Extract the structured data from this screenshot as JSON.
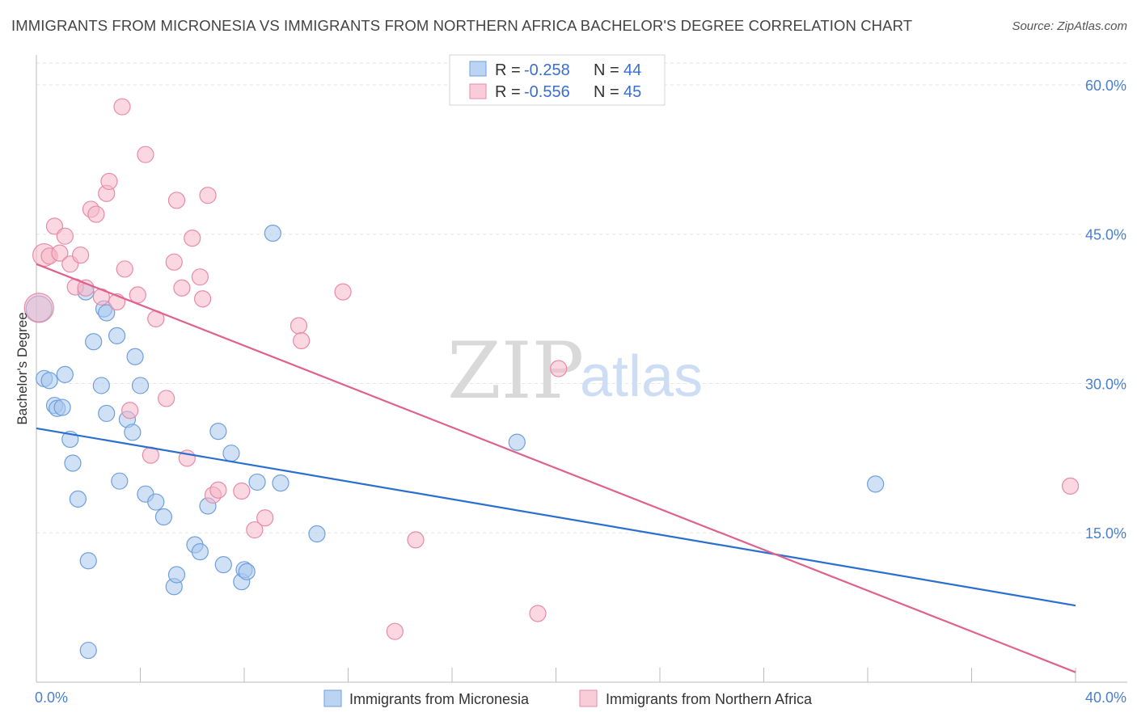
{
  "header": {
    "title": "IMMIGRANTS FROM MICRONESIA VS IMMIGRANTS FROM NORTHERN AFRICA BACHELOR'S DEGREE CORRELATION CHART",
    "source": "Source: ZipAtlas.com"
  },
  "watermark": {
    "zip": "ZIP",
    "atlas": "atlas"
  },
  "legend_top": {
    "r_label": "R =",
    "n_label": "N =",
    "rows": [
      {
        "r": "-0.258",
        "n": "44"
      },
      {
        "r": "-0.556",
        "n": "45"
      }
    ]
  },
  "chart_data": {
    "type": "scatter",
    "title": "IMMIGRANTS FROM MICRONESIA VS IMMIGRANTS FROM NORTHERN AFRICA BACHELOR'S DEGREE CORRELATION CHART",
    "xlabel": "",
    "ylabel": "Bachelor's Degree",
    "xlim": [
      0,
      40
    ],
    "ylim": [
      0,
      63
    ],
    "x_tick_labels": [
      "0.0%",
      "40.0%"
    ],
    "y_ticks": [
      15,
      30,
      45,
      60
    ],
    "y_tick_labels": [
      "15.0%",
      "30.0%",
      "45.0%",
      "60.0%"
    ],
    "grid": true,
    "legend_placement": "bottom-center",
    "series": [
      {
        "name": "Immigrants from Micronesia",
        "color": "#a9c8ef",
        "edge": "#6e9fdc",
        "line_color": "#2a6fd0",
        "R": -0.258,
        "N": 44,
        "trend": {
          "x": [
            0,
            40
          ],
          "y": [
            25.5,
            7.7
          ]
        },
        "points": [
          {
            "x": 0.1,
            "y": 37.5,
            "s": 16
          },
          {
            "x": 0.3,
            "y": 30.5,
            "s": 10
          },
          {
            "x": 0.5,
            "y": 30.3,
            "s": 10
          },
          {
            "x": 0.7,
            "y": 27.8,
            "s": 10
          },
          {
            "x": 0.8,
            "y": 27.5,
            "s": 10
          },
          {
            "x": 1.0,
            "y": 27.6,
            "s": 10
          },
          {
            "x": 1.1,
            "y": 30.9,
            "s": 10
          },
          {
            "x": 1.3,
            "y": 24.4,
            "s": 10
          },
          {
            "x": 1.4,
            "y": 22.0,
            "s": 10
          },
          {
            "x": 1.6,
            "y": 18.4,
            "s": 10
          },
          {
            "x": 1.9,
            "y": 39.2,
            "s": 10
          },
          {
            "x": 2.0,
            "y": 12.2,
            "s": 10
          },
          {
            "x": 2.0,
            "y": 3.2,
            "s": 10
          },
          {
            "x": 2.2,
            "y": 34.2,
            "s": 10
          },
          {
            "x": 2.5,
            "y": 29.8,
            "s": 10
          },
          {
            "x": 2.6,
            "y": 37.5,
            "s": 10
          },
          {
            "x": 2.7,
            "y": 37.1,
            "s": 10
          },
          {
            "x": 2.7,
            "y": 27.0,
            "s": 10
          },
          {
            "x": 3.1,
            "y": 34.8,
            "s": 10
          },
          {
            "x": 3.2,
            "y": 20.2,
            "s": 10
          },
          {
            "x": 3.5,
            "y": 26.4,
            "s": 10
          },
          {
            "x": 3.7,
            "y": 25.1,
            "s": 10
          },
          {
            "x": 3.8,
            "y": 32.7,
            "s": 10
          },
          {
            "x": 4.0,
            "y": 29.8,
            "s": 10
          },
          {
            "x": 4.2,
            "y": 18.9,
            "s": 10
          },
          {
            "x": 4.6,
            "y": 18.1,
            "s": 10
          },
          {
            "x": 4.9,
            "y": 16.6,
            "s": 10
          },
          {
            "x": 5.3,
            "y": 9.6,
            "s": 10
          },
          {
            "x": 5.4,
            "y": 10.8,
            "s": 10
          },
          {
            "x": 6.1,
            "y": 13.8,
            "s": 10
          },
          {
            "x": 6.3,
            "y": 13.1,
            "s": 10
          },
          {
            "x": 6.6,
            "y": 17.7,
            "s": 10
          },
          {
            "x": 7.0,
            "y": 25.2,
            "s": 10
          },
          {
            "x": 7.2,
            "y": 11.8,
            "s": 10
          },
          {
            "x": 7.5,
            "y": 23.0,
            "s": 10
          },
          {
            "x": 7.9,
            "y": 10.1,
            "s": 10
          },
          {
            "x": 8.0,
            "y": 11.3,
            "s": 10
          },
          {
            "x": 8.1,
            "y": 11.1,
            "s": 10
          },
          {
            "x": 8.5,
            "y": 20.1,
            "s": 10
          },
          {
            "x": 9.1,
            "y": 45.1,
            "s": 10
          },
          {
            "x": 9.4,
            "y": 20.0,
            "s": 10
          },
          {
            "x": 10.8,
            "y": 14.9,
            "s": 10
          },
          {
            "x": 18.5,
            "y": 24.1,
            "s": 10
          },
          {
            "x": 32.3,
            "y": 19.9,
            "s": 10
          }
        ]
      },
      {
        "name": "Immigrants from Northern Africa",
        "color": "#f5b7c9",
        "edge": "#e88aa7",
        "line_color": "#e0608e",
        "R": -0.556,
        "N": 45,
        "trend": {
          "x": [
            0,
            40
          ],
          "y": [
            42.0,
            1.0
          ]
        },
        "points": [
          {
            "x": 0.1,
            "y": 37.6,
            "s": 18
          },
          {
            "x": 0.3,
            "y": 42.9,
            "s": 14
          },
          {
            "x": 0.5,
            "y": 42.8,
            "s": 10
          },
          {
            "x": 0.7,
            "y": 45.8,
            "s": 10
          },
          {
            "x": 0.9,
            "y": 43.1,
            "s": 10
          },
          {
            "x": 1.1,
            "y": 44.8,
            "s": 10
          },
          {
            "x": 1.3,
            "y": 42.0,
            "s": 10
          },
          {
            "x": 1.5,
            "y": 39.7,
            "s": 10
          },
          {
            "x": 1.7,
            "y": 42.9,
            "s": 10
          },
          {
            "x": 1.9,
            "y": 39.6,
            "s": 10
          },
          {
            "x": 2.1,
            "y": 47.5,
            "s": 10
          },
          {
            "x": 2.3,
            "y": 47.0,
            "s": 10
          },
          {
            "x": 2.5,
            "y": 38.7,
            "s": 10
          },
          {
            "x": 2.7,
            "y": 49.1,
            "s": 10
          },
          {
            "x": 2.8,
            "y": 50.3,
            "s": 10
          },
          {
            "x": 3.1,
            "y": 38.2,
            "s": 10
          },
          {
            "x": 3.3,
            "y": 57.8,
            "s": 10
          },
          {
            "x": 3.4,
            "y": 41.5,
            "s": 10
          },
          {
            "x": 3.6,
            "y": 27.3,
            "s": 10
          },
          {
            "x": 3.9,
            "y": 38.9,
            "s": 10
          },
          {
            "x": 4.2,
            "y": 53.0,
            "s": 10
          },
          {
            "x": 4.4,
            "y": 22.8,
            "s": 10
          },
          {
            "x": 4.6,
            "y": 36.5,
            "s": 10
          },
          {
            "x": 5.0,
            "y": 28.5,
            "s": 10
          },
          {
            "x": 5.3,
            "y": 42.2,
            "s": 10
          },
          {
            "x": 5.4,
            "y": 48.4,
            "s": 10
          },
          {
            "x": 5.6,
            "y": 39.6,
            "s": 10
          },
          {
            "x": 5.8,
            "y": 22.5,
            "s": 10
          },
          {
            "x": 6.0,
            "y": 44.6,
            "s": 10
          },
          {
            "x": 6.3,
            "y": 40.7,
            "s": 10
          },
          {
            "x": 6.4,
            "y": 38.5,
            "s": 10
          },
          {
            "x": 6.6,
            "y": 48.9,
            "s": 10
          },
          {
            "x": 6.8,
            "y": 18.8,
            "s": 10
          },
          {
            "x": 7.0,
            "y": 19.3,
            "s": 10
          },
          {
            "x": 7.9,
            "y": 19.2,
            "s": 10
          },
          {
            "x": 8.4,
            "y": 15.3,
            "s": 10
          },
          {
            "x": 8.8,
            "y": 16.5,
            "s": 10
          },
          {
            "x": 10.1,
            "y": 35.8,
            "s": 10
          },
          {
            "x": 10.2,
            "y": 34.3,
            "s": 10
          },
          {
            "x": 11.8,
            "y": 39.2,
            "s": 10
          },
          {
            "x": 14.6,
            "y": 14.3,
            "s": 10
          },
          {
            "x": 13.8,
            "y": 5.1,
            "s": 10
          },
          {
            "x": 20.1,
            "y": 31.5,
            "s": 10
          },
          {
            "x": 19.3,
            "y": 6.9,
            "s": 10
          },
          {
            "x": 39.8,
            "y": 19.7,
            "s": 10
          }
        ]
      }
    ]
  }
}
